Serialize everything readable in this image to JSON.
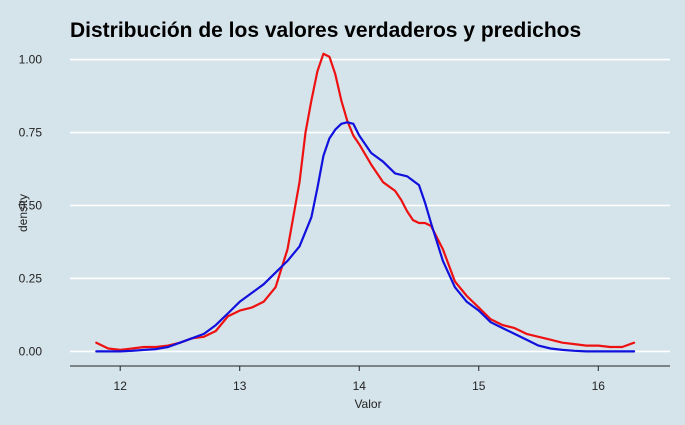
{
  "chart_data": {
    "type": "line",
    "title": "Distribución de los valores verdaderos y predichos",
    "xlabel": "Valor",
    "ylabel": "density",
    "xlim": [
      11.58,
      16.6
    ],
    "ylim": [
      -0.05,
      1.05
    ],
    "x_ticks": [
      12,
      13,
      14,
      15,
      16
    ],
    "x_tick_labels": [
      "12",
      "13",
      "14",
      "15",
      "16"
    ],
    "y_ticks": [
      0.0,
      0.25,
      0.5,
      0.75,
      1.0
    ],
    "y_tick_labels": [
      "0.00",
      "0.25",
      "0.50",
      "0.75",
      "1.00"
    ],
    "grid": "horizontal",
    "legend": "none",
    "series": [
      {
        "color": "#ee1111",
        "x": [
          11.8,
          11.9,
          12.0,
          12.1,
          12.2,
          12.3,
          12.4,
          12.5,
          12.6,
          12.7,
          12.8,
          12.9,
          13.0,
          13.1,
          13.2,
          13.3,
          13.4,
          13.5,
          13.55,
          13.6,
          13.65,
          13.7,
          13.75,
          13.8,
          13.85,
          13.9,
          13.95,
          14.0,
          14.1,
          14.2,
          14.3,
          14.35,
          14.4,
          14.45,
          14.5,
          14.55,
          14.6,
          14.7,
          14.8,
          14.9,
          15.0,
          15.1,
          15.2,
          15.3,
          15.4,
          15.5,
          15.6,
          15.7,
          15.8,
          15.9,
          16.0,
          16.1,
          16.2,
          16.3
        ],
        "y": [
          0.03,
          0.01,
          0.005,
          0.01,
          0.015,
          0.015,
          0.02,
          0.03,
          0.045,
          0.05,
          0.07,
          0.12,
          0.14,
          0.15,
          0.17,
          0.22,
          0.35,
          0.58,
          0.75,
          0.86,
          0.96,
          1.02,
          1.01,
          0.95,
          0.86,
          0.79,
          0.74,
          0.71,
          0.64,
          0.58,
          0.55,
          0.52,
          0.48,
          0.45,
          0.44,
          0.44,
          0.43,
          0.35,
          0.24,
          0.19,
          0.15,
          0.11,
          0.09,
          0.08,
          0.06,
          0.05,
          0.04,
          0.03,
          0.025,
          0.02,
          0.02,
          0.015,
          0.015,
          0.03
        ]
      },
      {
        "color": "#1111dd",
        "x": [
          11.8,
          11.9,
          12.0,
          12.1,
          12.2,
          12.3,
          12.4,
          12.5,
          12.6,
          12.7,
          12.8,
          12.9,
          13.0,
          13.1,
          13.2,
          13.3,
          13.4,
          13.5,
          13.6,
          13.65,
          13.7,
          13.75,
          13.8,
          13.85,
          13.9,
          13.95,
          14.0,
          14.1,
          14.2,
          14.3,
          14.4,
          14.5,
          14.55,
          14.6,
          14.7,
          14.8,
          14.9,
          15.0,
          15.1,
          15.2,
          15.3,
          15.4,
          15.5,
          15.6,
          15.7,
          15.8,
          15.9,
          16.0,
          16.1,
          16.2,
          16.3
        ],
        "y": [
          0.0,
          0.0,
          0.0,
          0.002,
          0.005,
          0.008,
          0.015,
          0.03,
          0.045,
          0.06,
          0.09,
          0.13,
          0.17,
          0.2,
          0.23,
          0.27,
          0.31,
          0.36,
          0.46,
          0.56,
          0.67,
          0.73,
          0.76,
          0.78,
          0.785,
          0.78,
          0.74,
          0.68,
          0.65,
          0.61,
          0.6,
          0.57,
          0.51,
          0.44,
          0.31,
          0.22,
          0.17,
          0.14,
          0.1,
          0.08,
          0.06,
          0.04,
          0.02,
          0.01,
          0.005,
          0.002,
          0.0,
          0.0,
          0.0,
          0.0,
          0.0
        ]
      }
    ]
  }
}
